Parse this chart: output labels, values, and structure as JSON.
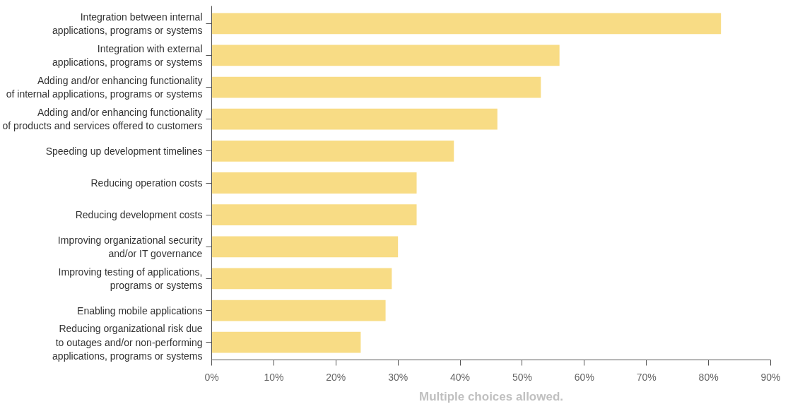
{
  "chart_data": {
    "type": "bar",
    "orientation": "horizontal",
    "categories": [
      "Integration between internal\napplications, programs or systems",
      "Integration with external\napplications, programs or systems",
      "Adding and/or enhancing functionality\nof internal applications, programs or systems",
      "Adding and/or enhancing functionality\nof products and services offered to customers",
      "Speeding up development timelines",
      "Reducing operation costs",
      "Reducing development costs",
      "Improving organizational security\nand/or IT governance",
      "Improving testing of applications,\nprograms or systems",
      "Enabling mobile applications",
      "Reducing organizational risk due\nto outages and/or non-performing\napplications, programs or systems"
    ],
    "values": [
      82,
      56,
      53,
      46,
      39,
      33,
      33,
      30,
      29,
      28,
      24
    ],
    "color": "#f8dc85",
    "xlim": [
      0,
      90
    ],
    "xticks": [
      {
        "value": 0,
        "label": "0%"
      },
      {
        "value": 10,
        "label": "10%"
      },
      {
        "value": 20,
        "label": "20%"
      },
      {
        "value": 30,
        "label": "30%"
      },
      {
        "value": 40,
        "label": "40%"
      },
      {
        "value": 50,
        "label": "50%"
      },
      {
        "value": 60,
        "label": "60%"
      },
      {
        "value": 70,
        "label": "70%"
      },
      {
        "value": 80,
        "label": "80%"
      },
      {
        "value": 90,
        "label": "90%"
      }
    ],
    "grid": false,
    "annotations": [
      "Multiple choices allowed."
    ]
  }
}
